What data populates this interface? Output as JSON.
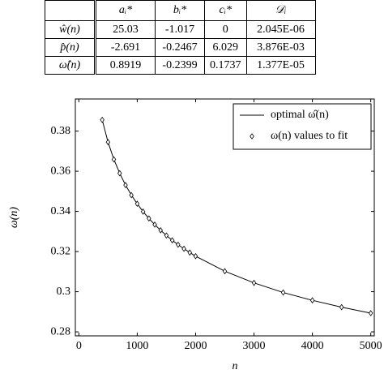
{
  "table": {
    "header": [
      "aᵢ*",
      "bᵢ*",
      "cᵢ*",
      "𝒟ᵢ"
    ],
    "rows": [
      [
        "ŵ(n)",
        "25.03",
        "-1.017",
        "0",
        "2.045E-06"
      ],
      [
        "p̂(n)",
        "-2.691",
        "-0.2467",
        "6.029",
        "3.876E-03"
      ],
      [
        "ω̂(n)",
        "0.8919",
        "-0.2399",
        "0.1737",
        "1.377E-05"
      ]
    ]
  },
  "chart_data": {
    "type": "line",
    "x_label": "n",
    "y_label": "ω(n)",
    "x": [
      400,
      500,
      600,
      700,
      800,
      900,
      1000,
      1100,
      1200,
      1300,
      1400,
      1500,
      1600,
      1700,
      1800,
      1900,
      2000,
      2500,
      3000,
      3500,
      4000,
      4500,
      5000
    ],
    "series": [
      {
        "name": "optimal ω̂(n)",
        "color": "#000000",
        "style": "line",
        "values": [
          0.3856,
          0.3745,
          0.3659,
          0.359,
          0.3531,
          0.3481,
          0.3438,
          0.3399,
          0.3365,
          0.3334,
          0.3306,
          0.328,
          0.3256,
          0.3234,
          0.3214,
          0.3195,
          0.3177,
          0.3102,
          0.3044,
          0.2996,
          0.2957,
          0.2923,
          0.2893
        ]
      },
      {
        "name": "ω(n) values to fit",
        "color": "#000000",
        "style": "marker",
        "values": [
          0.3856,
          0.3745,
          0.3659,
          0.359,
          0.3531,
          0.3481,
          0.3438,
          0.3399,
          0.3365,
          0.3334,
          0.3306,
          0.328,
          0.3256,
          0.3234,
          0.3214,
          0.3195,
          0.3177,
          0.3102,
          0.3044,
          0.2996,
          0.2957,
          0.2923,
          0.2893
        ]
      }
    ],
    "xlim": [
      -60,
      5060
    ],
    "xticks": [
      0,
      1000,
      2000,
      3000,
      4000,
      5000
    ],
    "ylim": [
      0.278,
      0.396
    ],
    "yticks": [
      0.28,
      0.3,
      0.32,
      0.34,
      0.36,
      0.38
    ],
    "legend": "upper right",
    "grid": false
  }
}
